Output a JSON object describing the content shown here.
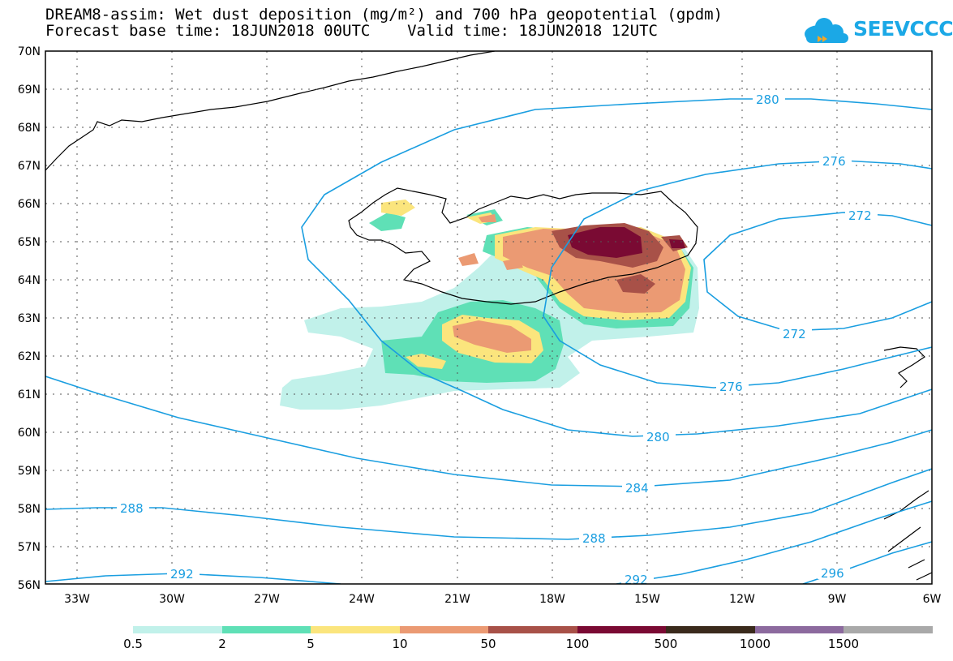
{
  "header": {
    "title_line1": "DREAM8-assim: Wet dust deposition (mg/m²) and 700 hPa geopotential (gpdm)",
    "title_line2": "Forecast base time: 18JUN2018 00UTC    Valid time: 18JUN2018 12UTC",
    "logo_text": "SEEVCCC"
  },
  "map": {
    "lat_labels": [
      "70N",
      "69N",
      "68N",
      "67N",
      "66N",
      "65N",
      "64N",
      "63N",
      "62N",
      "61N",
      "60N",
      "59N",
      "58N",
      "57N",
      "56N"
    ],
    "lon_labels": [
      "33W",
      "30W",
      "27W",
      "24W",
      "21W",
      "18W",
      "15W",
      "12W",
      "9W",
      "6W"
    ],
    "contour_color": "#1a9ee0",
    "contour_labels": {
      "c280a": "280",
      "c276a": "276",
      "c272a": "272",
      "c272b": "272",
      "c276b": "276",
      "c280b": "280",
      "c284": "284",
      "c288a": "288",
      "c288b": "288",
      "c292a": "292",
      "c292b": "292",
      "c296": "296"
    }
  },
  "legend": {
    "labels": [
      "0.5",
      "2",
      "5",
      "10",
      "50",
      "100",
      "500",
      "1000",
      "1500"
    ],
    "colors": [
      "#c1f1ea",
      "#5fe0b6",
      "#fbe57d",
      "#eb9a73",
      "#a85148",
      "#7a0a33",
      "#3a2a1c",
      "#8c6a9e",
      "#a9a9a9"
    ]
  }
}
